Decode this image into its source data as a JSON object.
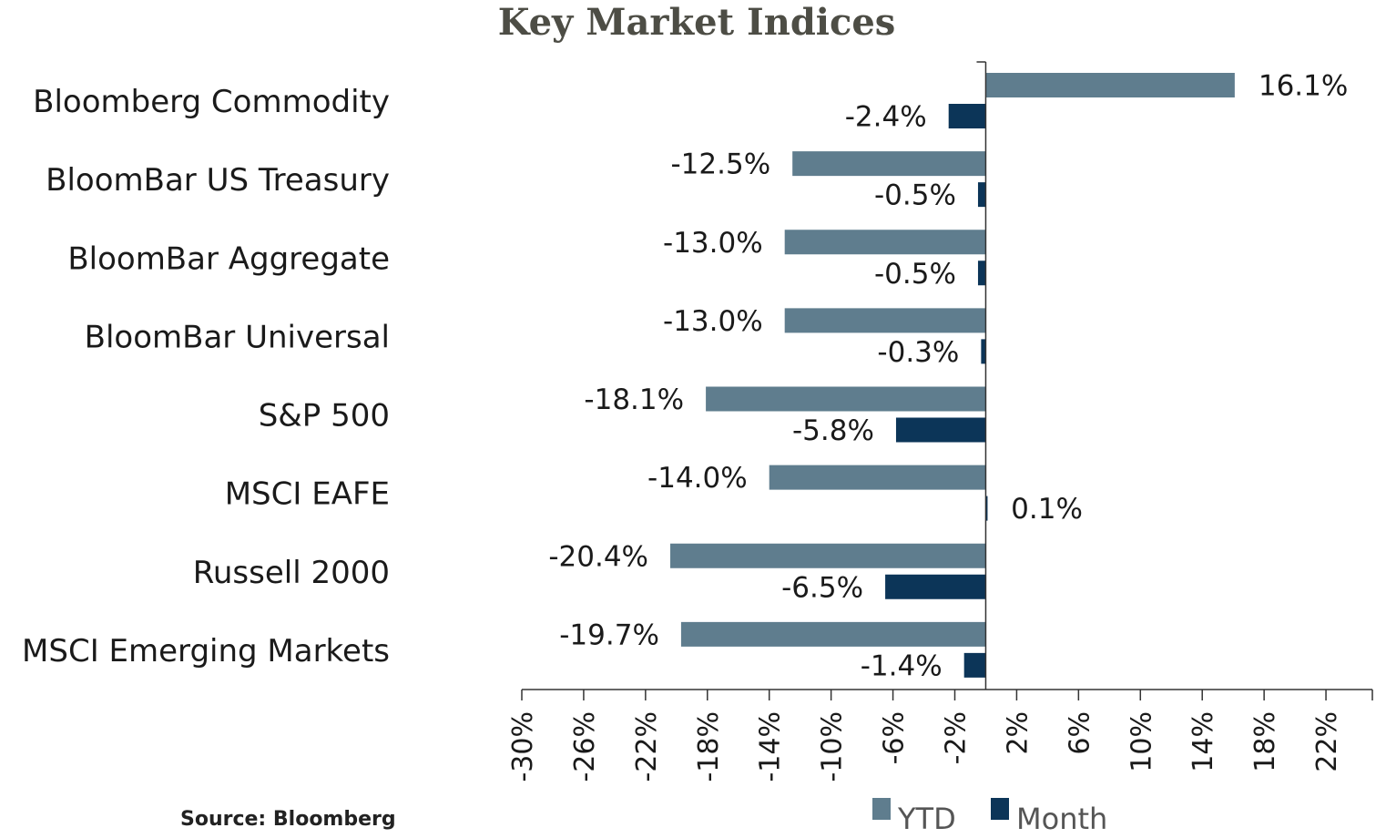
{
  "chart_data": {
    "type": "bar",
    "orientation": "horizontal",
    "title": "Key Market Indices",
    "categories": [
      "Bloomberg Commodity",
      "BloomBar US Treasury",
      "BloomBar Aggregate",
      "BloomBar Universal",
      "S&P 500",
      "MSCI EAFE",
      "Russell 2000",
      "MSCI Emerging Markets"
    ],
    "series": [
      {
        "name": "YTD",
        "color": "#5f7d8e",
        "values": [
          16.1,
          -12.5,
          -13.0,
          -13.0,
          -18.1,
          -14.0,
          -20.4,
          -19.7
        ],
        "labels": [
          "16.1%",
          "-12.5%",
          "-13.0%",
          "-13.0%",
          "-18.1%",
          "-14.0%",
          "-20.4%",
          "-19.7%"
        ]
      },
      {
        "name": "Month",
        "color": "#0c3558",
        "values": [
          -2.4,
          -0.5,
          -0.5,
          -0.3,
          -5.8,
          0.1,
          -6.5,
          -1.4
        ],
        "labels": [
          "-2.4%",
          "-0.5%",
          "-0.5%",
          "-0.3%",
          "-5.8%",
          "0.1%",
          "-6.5%",
          "-1.4%"
        ]
      }
    ],
    "xlim": [
      -30,
      25
    ],
    "xticks": [
      -30,
      -26,
      -22,
      -18,
      -14,
      -10,
      -6,
      -2,
      2,
      6,
      10,
      14,
      18,
      22
    ],
    "xtick_labels": [
      "-30%",
      "-26%",
      "-22%",
      "-18%",
      "-14%",
      "-10%",
      "-6%",
      "-2%",
      "2%",
      "6%",
      "10%",
      "14%",
      "18%",
      "22%"
    ],
    "grid": false,
    "legend": "bottom",
    "source": "Source: Bloomberg"
  }
}
